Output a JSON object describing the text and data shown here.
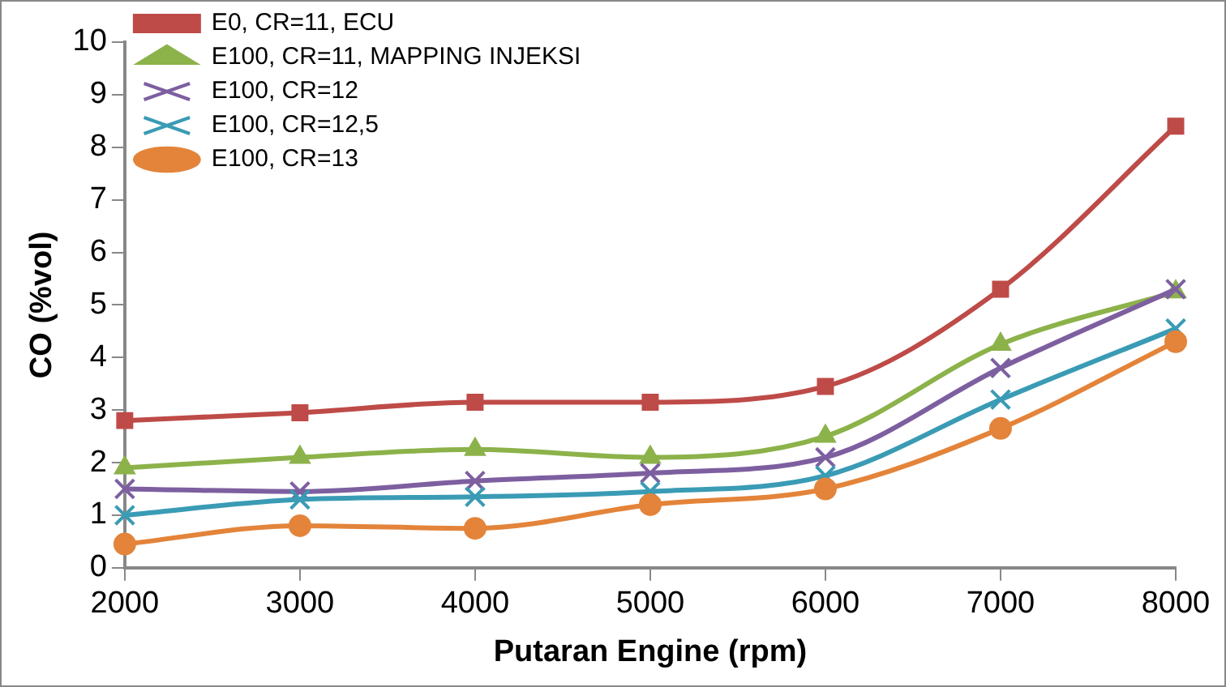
{
  "chart_data": {
    "type": "line",
    "xlabel": "Putaran Engine (rpm)",
    "ylabel": "CO (%vol)",
    "x": [
      2000,
      3000,
      4000,
      5000,
      6000,
      7000,
      8000
    ],
    "xlim": [
      2000,
      8000
    ],
    "xticks": [
      2000,
      3000,
      4000,
      5000,
      6000,
      7000,
      8000
    ],
    "ylim": [
      0,
      10
    ],
    "yticks": [
      0,
      1,
      2,
      3,
      4,
      5,
      6,
      7,
      8,
      9,
      10
    ],
    "grid": false,
    "legend": "top left",
    "series": [
      {
        "name": "E0, CR=11, ECU",
        "color": "#be4b48",
        "marker": "square",
        "values": [
          2.8,
          2.95,
          3.15,
          3.15,
          3.45,
          5.3,
          8.4
        ]
      },
      {
        "name": "E100, CR=11, MAPPING INJEKSI",
        "color": "#8cb24a",
        "marker": "triangle",
        "values": [
          1.9,
          2.1,
          2.25,
          2.1,
          2.5,
          4.25,
          5.25
        ]
      },
      {
        "name": "E100, CR=12",
        "color": "#7d5fa0",
        "marker": "cross",
        "values": [
          1.5,
          1.45,
          1.65,
          1.8,
          2.1,
          3.8,
          5.3
        ]
      },
      {
        "name": "E100, CR=12,5",
        "color": "#3a9bb5",
        "marker": "cross",
        "values": [
          1.0,
          1.3,
          1.35,
          1.45,
          1.75,
          3.2,
          4.55
        ]
      },
      {
        "name": "E100, CR=13",
        "color": "#e3843a",
        "marker": "circle",
        "values": [
          0.45,
          0.8,
          0.75,
          1.2,
          1.5,
          2.65,
          4.3
        ]
      }
    ]
  }
}
